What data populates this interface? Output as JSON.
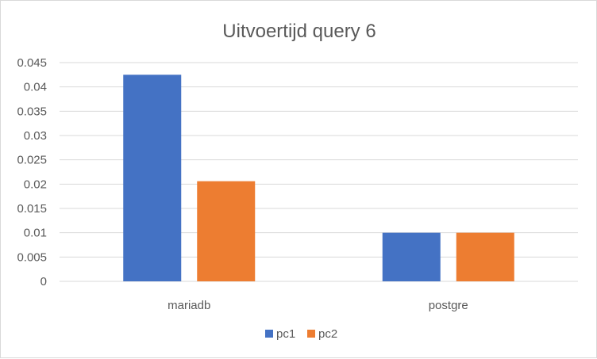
{
  "chart_data": {
    "type": "bar",
    "title": "Uitvoertijd query 6",
    "categories": [
      "mariadb",
      "postgre"
    ],
    "series": [
      {
        "name": "pc1",
        "color": "#4472c4",
        "values": [
          0.0425,
          0.01
        ]
      },
      {
        "name": "pc2",
        "color": "#ed7d31",
        "values": [
          0.0206,
          0.01
        ]
      }
    ],
    "ylim": [
      0,
      0.045
    ],
    "yticks": [
      "0",
      "0.005",
      "0.01",
      "0.015",
      "0.02",
      "0.025",
      "0.03",
      "0.035",
      "0.04",
      "0.045"
    ],
    "grid": true,
    "legend": "bottom",
    "xlabel": "",
    "ylabel": ""
  }
}
